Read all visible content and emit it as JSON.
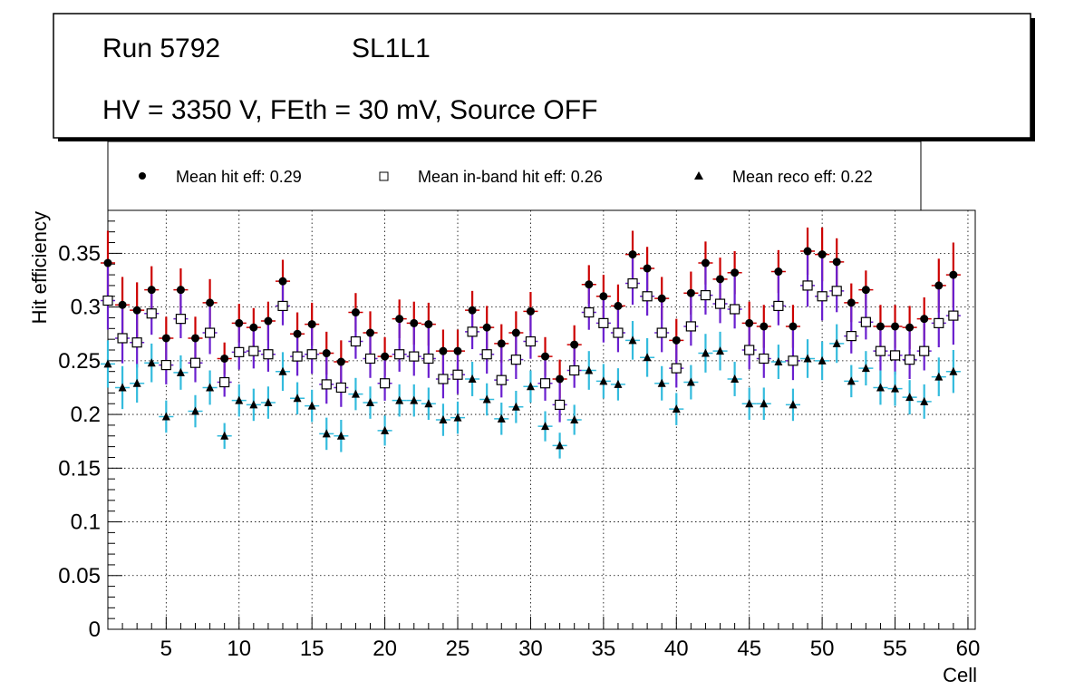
{
  "header": {
    "run": "Run 5792",
    "layer": "SL1L1",
    "conditions": "HV = 3350 V, FEth = 30 mV, Source OFF"
  },
  "legend": {
    "hit": "Mean hit  eff: 0.29",
    "inband": "Mean in-band hit eff: 0.26",
    "reco": "Mean reco eff: 0.22"
  },
  "chart_data": {
    "type": "scatter",
    "xlabel": "Cell",
    "ylabel": "Hit efficiency",
    "xlim": [
      1,
      60.5
    ],
    "ylim": [
      0,
      0.39
    ],
    "grid": true,
    "x_ticks": [
      5,
      10,
      15,
      20,
      25,
      30,
      35,
      40,
      45,
      50,
      55,
      60
    ],
    "x_tick_labels": [
      "5",
      "10",
      "15",
      "20",
      "25",
      "30",
      "35",
      "40",
      "45",
      "50",
      "55",
      "60"
    ],
    "y_ticks": [
      0,
      0.05,
      0.1,
      0.15,
      0.2,
      0.25,
      0.3,
      0.35
    ],
    "y_tick_labels": [
      "0",
      "0.05",
      "0.1",
      "0.15",
      "0.2",
      "0.25",
      "0.3",
      "0.35"
    ],
    "cells": [
      1,
      2,
      3,
      4,
      5,
      6,
      7,
      8,
      9,
      10,
      11,
      12,
      13,
      14,
      15,
      16,
      17,
      18,
      19,
      20,
      21,
      22,
      23,
      24,
      25,
      26,
      27,
      28,
      29,
      30,
      31,
      32,
      33,
      34,
      35,
      36,
      37,
      38,
      39,
      40,
      41,
      42,
      43,
      44,
      45,
      46,
      47,
      48,
      49,
      50,
      51,
      52,
      53,
      54,
      55,
      56,
      57,
      58,
      59
    ],
    "series": [
      {
        "name": "hit",
        "marker": "filled-circle",
        "color": "#000000",
        "error_color": "#cc0000",
        "values": [
          0.341,
          0.302,
          0.297,
          0.316,
          0.271,
          0.316,
          0.271,
          0.304,
          0.252,
          0.285,
          0.281,
          0.287,
          0.324,
          0.275,
          0.284,
          0.257,
          0.249,
          0.295,
          0.276,
          0.254,
          0.289,
          0.285,
          0.284,
          0.259,
          0.259,
          0.297,
          0.281,
          0.266,
          0.276,
          0.296,
          0.254,
          0.233,
          0.265,
          0.321,
          0.31,
          0.301,
          0.349,
          0.336,
          0.308,
          0.269,
          0.313,
          0.341,
          0.326,
          0.332,
          0.285,
          0.282,
          0.333,
          0.282,
          0.352,
          0.349,
          0.342,
          0.304,
          0.316,
          0.282,
          0.282,
          0.281,
          0.289,
          0.32,
          0.33
        ],
        "errors": [
          0.03,
          0.026,
          0.026,
          0.022,
          0.02,
          0.02,
          0.02,
          0.022,
          0.015,
          0.018,
          0.018,
          0.018,
          0.02,
          0.02,
          0.02,
          0.02,
          0.02,
          0.018,
          0.02,
          0.018,
          0.018,
          0.02,
          0.02,
          0.02,
          0.02,
          0.018,
          0.02,
          0.018,
          0.02,
          0.018,
          0.018,
          0.018,
          0.018,
          0.018,
          0.02,
          0.02,
          0.022,
          0.02,
          0.02,
          0.02,
          0.02,
          0.02,
          0.02,
          0.02,
          0.02,
          0.02,
          0.02,
          0.02,
          0.022,
          0.025,
          0.022,
          0.018,
          0.018,
          0.02,
          0.02,
          0.02,
          0.02,
          0.025,
          0.03
        ]
      },
      {
        "name": "inband",
        "marker": "open-square",
        "color": "#000000",
        "error_color": "#6a1fcf",
        "values": [
          0.306,
          0.271,
          0.267,
          0.294,
          0.246,
          0.289,
          0.248,
          0.276,
          0.23,
          0.258,
          0.259,
          0.256,
          0.301,
          0.254,
          0.256,
          0.228,
          0.225,
          0.268,
          0.252,
          0.229,
          0.256,
          0.254,
          0.252,
          0.233,
          0.237,
          0.277,
          0.256,
          0.232,
          0.251,
          0.268,
          0.229,
          0.209,
          0.241,
          0.295,
          0.285,
          0.276,
          0.322,
          0.31,
          0.276,
          0.243,
          0.282,
          0.311,
          0.303,
          0.298,
          0.26,
          0.252,
          0.301,
          0.25,
          0.32,
          0.31,
          0.315,
          0.273,
          0.286,
          0.259,
          0.255,
          0.251,
          0.259,
          0.285,
          0.292
        ]
      },
      {
        "name": "reco",
        "marker": "filled-triangle",
        "color": "#000000",
        "error_color": "#33bbdd",
        "values": [
          0.247,
          0.225,
          0.229,
          0.248,
          0.198,
          0.239,
          0.203,
          0.225,
          0.18,
          0.213,
          0.209,
          0.211,
          0.24,
          0.215,
          0.208,
          0.182,
          0.18,
          0.219,
          0.211,
          0.185,
          0.213,
          0.213,
          0.21,
          0.195,
          0.197,
          0.233,
          0.214,
          0.196,
          0.207,
          0.226,
          0.189,
          0.171,
          0.195,
          0.241,
          0.231,
          0.228,
          0.269,
          0.253,
          0.229,
          0.205,
          0.23,
          0.257,
          0.259,
          0.233,
          0.21,
          0.21,
          0.249,
          0.209,
          0.252,
          0.25,
          0.266,
          0.231,
          0.243,
          0.225,
          0.224,
          0.216,
          0.212,
          0.235,
          0.24
        ],
        "errors": [
          0.022,
          0.02,
          0.018,
          0.018,
          0.015,
          0.016,
          0.015,
          0.016,
          0.012,
          0.015,
          0.015,
          0.015,
          0.018,
          0.015,
          0.015,
          0.015,
          0.015,
          0.015,
          0.015,
          0.014,
          0.015,
          0.015,
          0.015,
          0.015,
          0.015,
          0.016,
          0.015,
          0.015,
          0.015,
          0.015,
          0.014,
          0.012,
          0.014,
          0.018,
          0.016,
          0.015,
          0.018,
          0.018,
          0.016,
          0.015,
          0.016,
          0.018,
          0.018,
          0.016,
          0.015,
          0.015,
          0.016,
          0.015,
          0.018,
          0.018,
          0.018,
          0.015,
          0.016,
          0.016,
          0.016,
          0.016,
          0.016,
          0.018,
          0.02
        ]
      }
    ]
  }
}
